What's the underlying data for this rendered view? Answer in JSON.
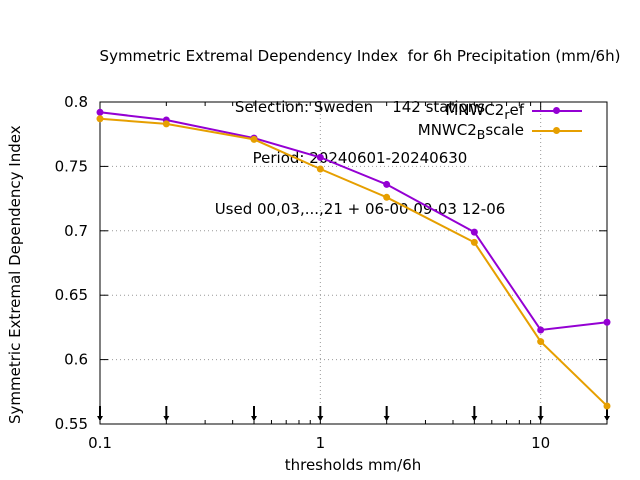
{
  "chart_data": {
    "type": "line",
    "title": "Symmetric Extremal Dependency Index  for 6h Precipitation (mm/6h)",
    "subtitle_lines": [
      "Selection: Sweden    142 stations",
      "Period: 20240601-20240630",
      "Used 00,03,...,21 + 06-00 09-03 12-06"
    ],
    "xlabel": "thresholds mm/6h",
    "ylabel": "Symmetric Extremal Dependency Index",
    "xscale": "log",
    "xlim": [
      0.1,
      20
    ],
    "ylim": [
      0.55,
      0.8
    ],
    "xticks": [
      "0.1",
      "1",
      "10"
    ],
    "yticks": [
      "0.55",
      "0.6",
      "0.65",
      "0.7",
      "0.75",
      "0.8"
    ],
    "grid": true,
    "legend_position": "top-right",
    "x": [
      0.1,
      0.2,
      0.5,
      1,
      2,
      5,
      10,
      20
    ],
    "series": [
      {
        "name": "MNWC2_ref",
        "name_main": "MNWC2",
        "name_sub": "r",
        "name_tail": "ef",
        "color": "#9400d3",
        "values": [
          0.792,
          0.786,
          0.772,
          0.757,
          0.736,
          0.699,
          0.623,
          0.629
        ]
      },
      {
        "name": "MNWC2_Bscale",
        "name_main": "MNWC2",
        "name_sub": "B",
        "name_tail": "scale",
        "color": "#e69f00",
        "values": [
          0.787,
          0.783,
          0.771,
          0.748,
          0.726,
          0.691,
          0.614,
          0.564
        ]
      }
    ]
  }
}
